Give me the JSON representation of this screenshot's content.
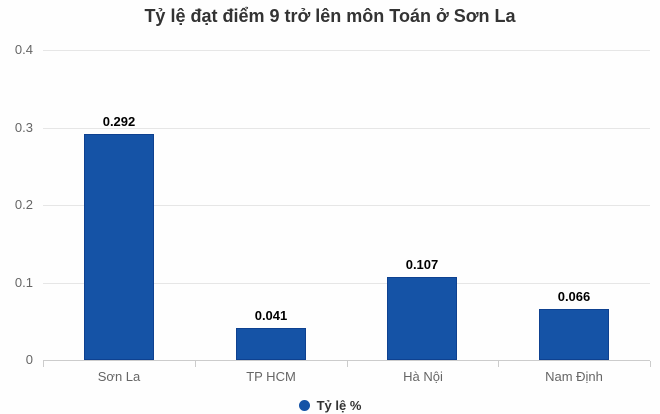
{
  "title": "Tỷ lệ đạt điểm 9 trở lên môn Toán ở Sơn La",
  "legend": {
    "label": "Tỷ lệ %",
    "marker": "circle-icon"
  },
  "chart_data": {
    "type": "bar",
    "title": "Tỷ lệ đạt điểm 9 trở lên môn Toán ở Sơn La",
    "categories": [
      "Sơn La",
      "TP HCM",
      "Hà Nội",
      "Nam Định"
    ],
    "series": [
      {
        "name": "Tỷ lệ %",
        "values": [
          0.292,
          0.041,
          0.107,
          0.066
        ]
      }
    ],
    "data_labels": [
      "0.292",
      "0.041",
      "0.107",
      "0.066"
    ],
    "xlabel": "",
    "ylabel": "",
    "ylim": [
      0,
      0.4
    ],
    "yticks": [
      0,
      0.1,
      0.2,
      0.3,
      0.4
    ],
    "ytick_labels": [
      "0",
      "0.1",
      "0.2",
      "0.3",
      "0.4"
    ],
    "grid": true,
    "legend_position": "bottom",
    "colors": {
      "bar": "#1553a6",
      "bar_border": "#0e4190",
      "title": "#333333",
      "value_label": "#000000",
      "axis_text": "#666666",
      "grid_line": "#e6e6e6",
      "axis_line": "#cccccc",
      "background": "#fefefe"
    }
  }
}
